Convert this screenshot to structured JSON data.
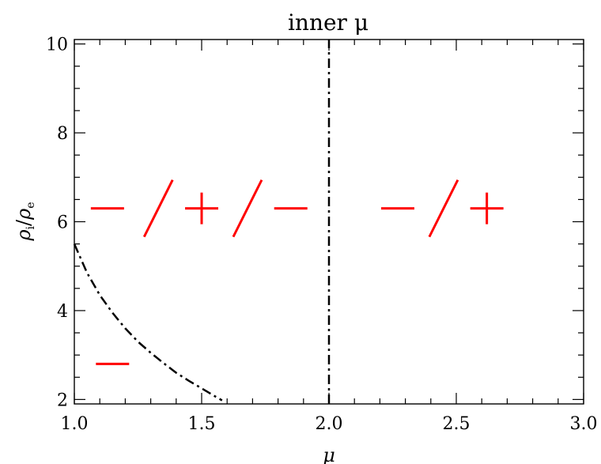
{
  "chart_data": {
    "type": "line",
    "title": "inner μ",
    "xlabel": "μ",
    "ylabel": "ρi/ρe",
    "ylabel_main": "ρ",
    "ylabel_sub_num": "i",
    "ylabel_sub_den": "e",
    "xlim": [
      1.0,
      3.0
    ],
    "ylim": [
      1.9,
      10.1
    ],
    "xticks": [
      "1.0",
      "1.5",
      "2.0",
      "2.5",
      "3.0"
    ],
    "xtick_values": [
      1.0,
      1.5,
      2.0,
      2.5,
      3.0
    ],
    "yticks": [
      "2",
      "4",
      "6",
      "8",
      "10"
    ],
    "ytick_values": [
      2,
      4,
      6,
      8,
      10
    ],
    "x_minor_step": 0.1,
    "y_minor_step": 0.5,
    "series": [
      {
        "style": "dash-dot",
        "x": [
          1.0,
          1.05,
          1.1,
          1.15,
          1.2,
          1.25,
          1.3,
          1.35,
          1.4,
          1.45,
          1.5,
          1.55,
          1.58
        ],
        "y": [
          5.5,
          4.85,
          4.35,
          3.95,
          3.6,
          3.3,
          3.05,
          2.82,
          2.6,
          2.42,
          2.25,
          2.08,
          1.98
        ]
      },
      {
        "style": "dash-dot",
        "x": [
          2.0,
          2.0
        ],
        "y": [
          1.9,
          10.1
        ]
      }
    ],
    "annotations": [
      {
        "label": "−/+/−",
        "text_parts": [
          "−",
          "/",
          "+",
          "/",
          "−"
        ],
        "x": [
          1.13,
          1.33,
          1.5,
          1.68,
          1.85
        ],
        "y": 6.3,
        "color": "#ff0000"
      },
      {
        "label": "−/+",
        "text_parts": [
          "−",
          "/",
          "+"
        ],
        "x": [
          2.27,
          2.45,
          2.62
        ],
        "y": 6.3,
        "color": "#ff0000"
      },
      {
        "label": "−",
        "text_parts": [
          "−"
        ],
        "x": [
          1.15
        ],
        "y": 2.8,
        "color": "#ff0000"
      }
    ],
    "grid": false,
    "legend": "none"
  }
}
